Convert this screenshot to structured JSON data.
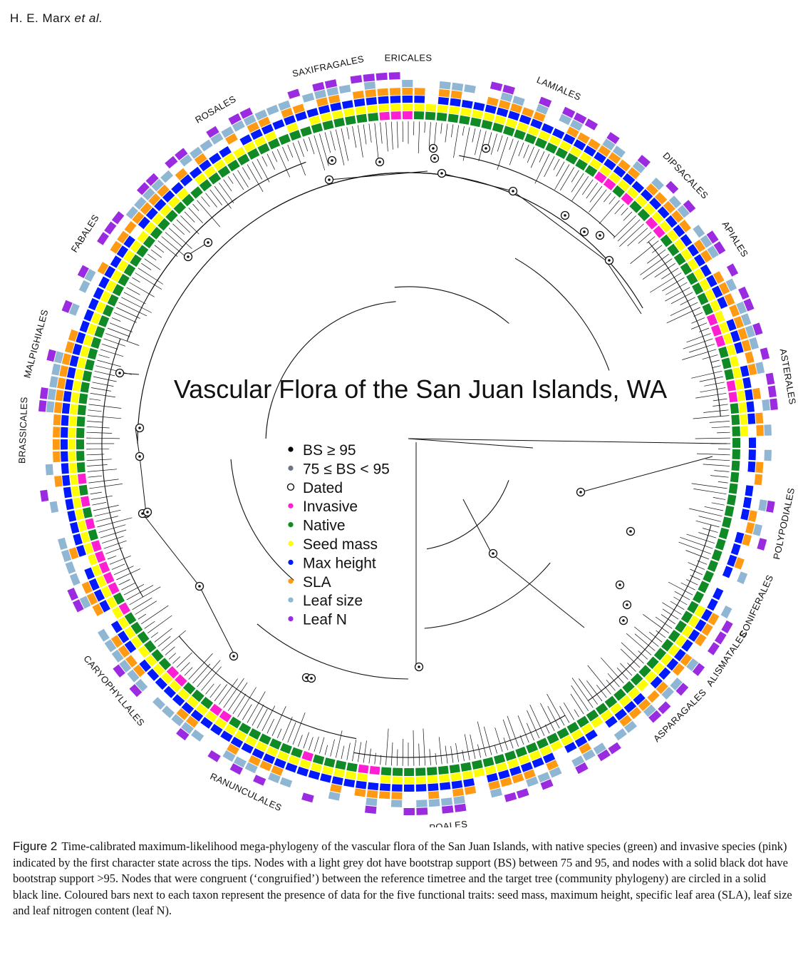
{
  "header": {
    "authors": "H. E. Marx ",
    "etal": "et al."
  },
  "title": "Vascular Flora of the San Juan Islands, WA",
  "colors": {
    "invasive": "#ff1fd2",
    "native": "#0f8a24",
    "seed_mass": "#ffff00",
    "max_height": "#0019ff",
    "sla": "#ff9a12",
    "leaf_size": "#8fb6d3",
    "leaf_n": "#9b2be0",
    "bs95": "#000000",
    "bs75": "#6e7585"
  },
  "legend": [
    {
      "label": "BS ≥ 95",
      "marker": "filled-black-dot"
    },
    {
      "label": "75 ≤ BS < 95",
      "marker": "filled-grey-dot"
    },
    {
      "label": "Dated",
      "marker": "open-circle"
    },
    {
      "label": "Invasive",
      "marker": "pink-dot"
    },
    {
      "label": "Native",
      "marker": "green-dot"
    },
    {
      "label": "Seed mass",
      "marker": "yellow-dot"
    },
    {
      "label": "Max height",
      "marker": "blue-dot"
    },
    {
      "label": "SLA",
      "marker": "orange-dot"
    },
    {
      "label": "Leaf size",
      "marker": "lightblue-dot"
    },
    {
      "label": "Leaf N",
      "marker": "purple-dot"
    }
  ],
  "clades": [
    {
      "name": "ERICALES",
      "angle": -90
    },
    {
      "name": "LAMIALES",
      "angle": -67
    },
    {
      "name": "DIPSACALES",
      "angle": -44
    },
    {
      "name": "APIALES",
      "angle": -32
    },
    {
      "name": "ASTERALES",
      "angle": -10
    },
    {
      "name": "POLYPODIALES",
      "angle": 12
    },
    {
      "name": "CONIFERALES",
      "angle": 25
    },
    {
      "name": "ALISMATALES",
      "angle": 34
    },
    {
      "name": "ASPARAGALES",
      "angle": 45
    },
    {
      "name": "POALES",
      "angle": 84
    },
    {
      "name": "RANUNCULALES",
      "angle": 115
    },
    {
      "name": "CARYOPHYLLALES",
      "angle": 140
    },
    {
      "name": "BRASSICALES",
      "angle": 182
    },
    {
      "name": "MALPIGHIALES",
      "angle": 195
    },
    {
      "name": "FABALES",
      "angle": 213
    },
    {
      "name": "ROSALES",
      "angle": 240
    },
    {
      "name": "SAXIFRAGALES",
      "angle": 258
    }
  ],
  "caption": {
    "label": "Figure 2",
    "text": "Time-calibrated maximum-likelihood mega-phylogeny of the vascular flora of the San Juan Islands, with native species (green) and invasive species (pink) indicated by the first character state across the tips. Nodes with a light grey dot have bootstrap support (BS) between 75 and 95, and nodes with a solid black dot have bootstrap support >95. Nodes that were congruent (‘congruified’) between the reference timetree and the target tree (community phylogeny) are circled in a solid black line. Coloured bars next to each taxon represent the presence of data for the five functional traits: seed mass, maximum height, specific leaf area (SLA), leaf size and leaf nitrogen content (leaf N)."
  }
}
